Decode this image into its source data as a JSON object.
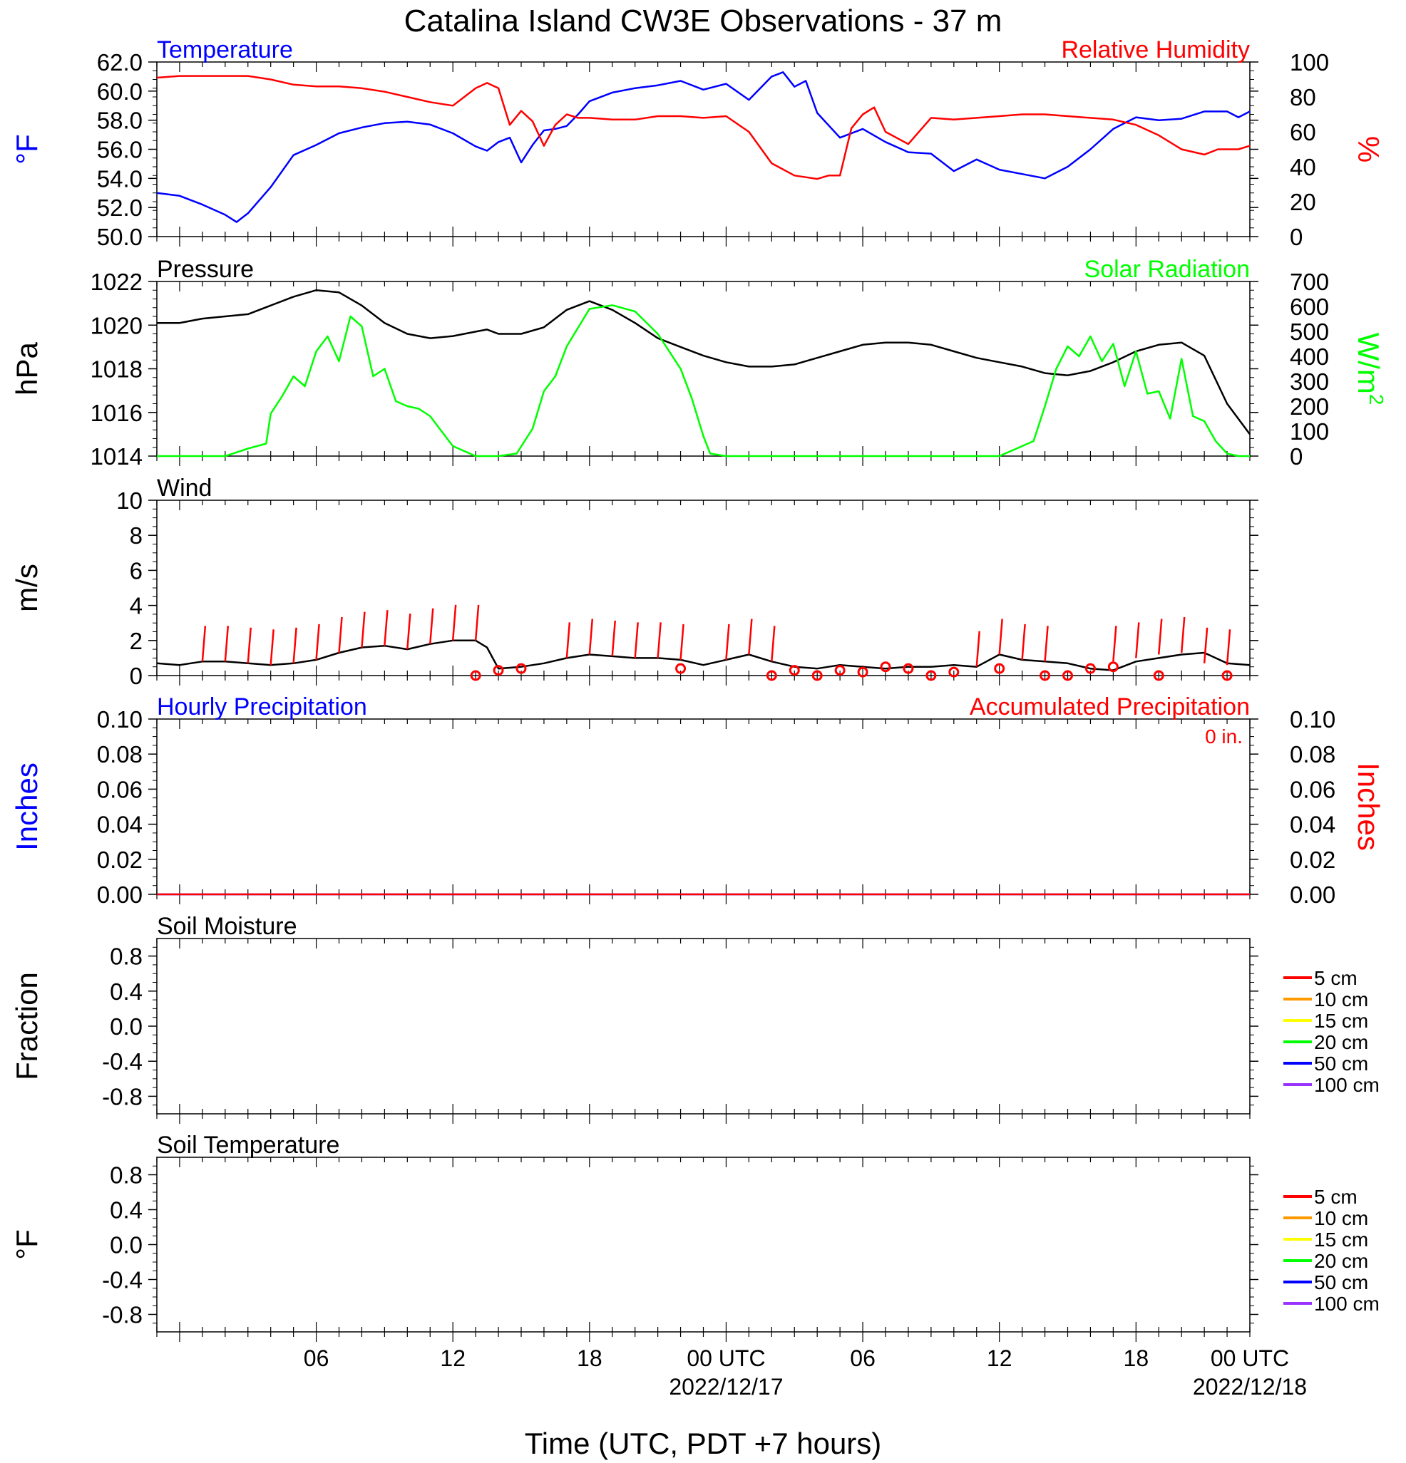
{
  "title": "Catalina Island CW3E Observations - 37 m",
  "xlabel": "Time (UTC, PDT +7 hours)",
  "x_ticks": [
    {
      "label": "06",
      "sub": ""
    },
    {
      "label": "12",
      "sub": ""
    },
    {
      "label": "18",
      "sub": ""
    },
    {
      "label": "00 UTC",
      "sub": "2022/12/17"
    },
    {
      "label": "06",
      "sub": ""
    },
    {
      "label": "12",
      "sub": ""
    },
    {
      "label": "18",
      "sub": ""
    },
    {
      "label": "00 UTC",
      "sub": "2022/12/18"
    }
  ],
  "colors": {
    "temperature": "#0000ff",
    "humidity": "#ff0000",
    "pressure": "#000000",
    "solar": "#00ff00",
    "wind": "#000000",
    "wind_barb": "#ff0000",
    "hourly_precip": "#0000ff",
    "accum_precip": "#ff0000"
  },
  "chart_data": [
    {
      "type": "line",
      "title_left": "Temperature",
      "title_right": "Relative Humidity",
      "ylabel_left": "°F",
      "ylabel_right": "%",
      "ylim_left": [
        50,
        62
      ],
      "ylim_right": [
        0,
        100
      ],
      "yticks_left": [
        "62.0",
        "60.0",
        "58.0",
        "56.0",
        "54.0",
        "52.0",
        "50.0"
      ],
      "yticks_right": [
        "100",
        "80",
        "60",
        "40",
        "20",
        "0"
      ],
      "xlim_hours": [
        -1,
        47
      ],
      "series": [
        {
          "name": "Temperature",
          "axis": "left",
          "x": [
            -1,
            0,
            1,
            2,
            2.5,
            3,
            4,
            5,
            6,
            7,
            8,
            9,
            10,
            11,
            12,
            13,
            13.5,
            14,
            14.5,
            15,
            15.5,
            16,
            16.5,
            17,
            17.5,
            18,
            19,
            20,
            21,
            22,
            23,
            24,
            25,
            26,
            26.5,
            27,
            27.5,
            28,
            29,
            30,
            31,
            32,
            33,
            34,
            35,
            36,
            37,
            38,
            39,
            40,
            41,
            42,
            43,
            44,
            45,
            45.6,
            46,
            46.5,
            47
          ],
          "y": [
            53,
            52.8,
            52.2,
            51.5,
            51.0,
            51.6,
            53.4,
            55.6,
            56.3,
            57.1,
            57.5,
            57.8,
            57.9,
            57.7,
            57.1,
            56.2,
            55.9,
            56.5,
            56.8,
            55.1,
            56.3,
            57.3,
            57.4,
            57.6,
            58.4,
            59.3,
            59.9,
            60.2,
            60.4,
            60.7,
            60.1,
            60.5,
            59.4,
            61.0,
            61.3,
            60.3,
            60.7,
            58.5,
            56.8,
            57.4,
            56.5,
            55.8,
            55.7,
            54.5,
            55.3,
            54.6,
            54.3,
            54.0,
            54.8,
            56.0,
            57.4,
            58.2,
            58.0,
            58.1,
            58.6,
            58.6,
            58.6,
            58.2,
            58.6
          ]
        },
        {
          "name": "Relative Humidity",
          "axis": "right",
          "x": [
            -1,
            0,
            1,
            2,
            3,
            4,
            5,
            6,
            7,
            8,
            9,
            10,
            11,
            12,
            13,
            13.5,
            14,
            14.5,
            15,
            15.5,
            16,
            16.5,
            17,
            17.5,
            18,
            19,
            20,
            21,
            22,
            23,
            24,
            25,
            26,
            27,
            28,
            28.5,
            29,
            29.5,
            30,
            30.5,
            31,
            32,
            33,
            34,
            35,
            36,
            37,
            38,
            39,
            40,
            41,
            42,
            43,
            44,
            45,
            45.6,
            46,
            46.5,
            47
          ],
          "y": [
            91,
            92,
            92,
            92,
            92,
            90,
            87,
            86,
            86,
            85,
            83,
            80,
            77,
            75,
            85,
            88,
            85,
            64,
            72,
            66,
            52,
            64,
            70,
            68,
            68,
            67,
            67,
            69,
            69,
            68,
            69,
            60,
            42,
            35,
            33,
            35,
            35,
            62,
            70,
            74,
            60,
            53,
            68,
            67,
            68,
            69,
            70,
            70,
            69,
            68,
            67,
            64,
            58,
            50,
            47,
            50,
            50,
            50,
            52
          ]
        }
      ]
    },
    {
      "type": "line",
      "title_left": "Pressure",
      "title_right": "Solar Radiation",
      "ylabel_left": "hPa",
      "ylabel_right": "W/m",
      "ylabel_right_sup": "2",
      "ylim_left": [
        1014,
        1022
      ],
      "ylim_right": [
        0,
        700
      ],
      "yticks_left": [
        "1022",
        "1020",
        "1018",
        "1016",
        "1014"
      ],
      "yticks_right": [
        "700",
        "600",
        "500",
        "400",
        "300",
        "200",
        "100",
        "0"
      ],
      "xlim_hours": [
        -1,
        47
      ],
      "series": [
        {
          "name": "Pressure",
          "axis": "left",
          "x": [
            -1,
            0,
            1,
            2,
            3,
            4,
            5,
            6,
            7,
            8,
            9,
            10,
            11,
            12,
            13,
            13.5,
            14,
            15,
            16,
            17,
            18,
            19,
            20,
            21,
            22,
            23,
            24,
            25,
            26,
            27,
            28,
            29,
            30,
            31,
            32,
            33,
            34,
            35,
            36,
            37,
            38,
            39,
            40,
            41,
            42,
            43,
            44,
            45,
            46,
            47
          ],
          "y": [
            1020.1,
            1020.1,
            1020.3,
            1020.4,
            1020.5,
            1020.9,
            1021.3,
            1021.6,
            1021.5,
            1020.9,
            1020.1,
            1019.6,
            1019.4,
            1019.5,
            1019.7,
            1019.8,
            1019.6,
            1019.6,
            1019.9,
            1020.7,
            1021.1,
            1020.7,
            1020.1,
            1019.4,
            1019.0,
            1018.6,
            1018.3,
            1018.1,
            1018.1,
            1018.2,
            1018.5,
            1018.8,
            1019.1,
            1019.2,
            1019.2,
            1019.1,
            1018.8,
            1018.5,
            1018.3,
            1018.1,
            1017.8,
            1017.7,
            1017.9,
            1018.3,
            1018.8,
            1019.1,
            1019.2,
            1018.6,
            1016.4,
            1015.0
          ]
        },
        {
          "name": "Solar Radiation",
          "axis": "right",
          "x": [
            -1,
            0,
            1,
            2,
            3,
            3.8,
            4,
            4.5,
            5,
            5.5,
            6,
            6.5,
            7,
            7.5,
            8,
            8.5,
            9,
            9.5,
            10,
            10.5,
            11,
            11.5,
            12,
            13,
            13.5,
            14,
            14.8,
            15.5,
            16,
            16.5,
            17,
            18,
            19,
            20,
            21,
            22,
            22.5,
            23,
            23.3,
            24,
            30,
            36,
            37.5,
            38,
            38.5,
            39,
            39.5,
            40,
            40.5,
            41,
            41.5,
            42,
            42.5,
            43,
            43.5,
            44,
            44.5,
            45,
            45.5,
            46,
            46.5,
            47
          ],
          "y": [
            0,
            0,
            0,
            0,
            30,
            50,
            170,
            240,
            320,
            280,
            420,
            480,
            380,
            560,
            520,
            320,
            350,
            220,
            200,
            190,
            160,
            100,
            40,
            0,
            0,
            0,
            10,
            110,
            260,
            320,
            440,
            590,
            605,
            580,
            490,
            350,
            230,
            80,
            10,
            0,
            0,
            0,
            60,
            200,
            350,
            440,
            400,
            480,
            380,
            450,
            280,
            420,
            250,
            260,
            150,
            390,
            160,
            140,
            60,
            10,
            0,
            0
          ]
        }
      ]
    },
    {
      "type": "line",
      "title_left": "Wind",
      "ylabel_left": "m/s",
      "ylim_left": [
        0,
        10
      ],
      "yticks_left": [
        "10",
        "8",
        "6",
        "4",
        "2",
        "0"
      ],
      "xlim_hours": [
        -1,
        47
      ],
      "series": [
        {
          "name": "Wind",
          "axis": "left",
          "x": [
            -1,
            0,
            1,
            2,
            3,
            4,
            5,
            6,
            7,
            8,
            9,
            10,
            11,
            12,
            13,
            13.5,
            14,
            15,
            16,
            17,
            18,
            19,
            20,
            21,
            22,
            23,
            24,
            25,
            26,
            27,
            28,
            29,
            30,
            31,
            32,
            33,
            34,
            35,
            36,
            37,
            38,
            39,
            40,
            41,
            42,
            43,
            44,
            45,
            46,
            47
          ],
          "y": [
            0.7,
            0.6,
            0.8,
            0.8,
            0.7,
            0.6,
            0.7,
            0.9,
            1.3,
            1.6,
            1.7,
            1.5,
            1.8,
            2.0,
            2.0,
            1.6,
            0.4,
            0.5,
            0.7,
            1.0,
            1.2,
            1.1,
            1.0,
            1.0,
            0.9,
            0.6,
            0.9,
            1.2,
            0.8,
            0.5,
            0.4,
            0.6,
            0.5,
            0.4,
            0.5,
            0.5,
            0.6,
            0.5,
            1.2,
            0.9,
            0.8,
            0.7,
            0.4,
            0.3,
            0.8,
            1.0,
            1.2,
            1.3,
            0.7,
            0.6
          ]
        }
      ],
      "barbs": {
        "hours": [
          1,
          2,
          3,
          4,
          5,
          6,
          7,
          8,
          9,
          10,
          11,
          12,
          13,
          17,
          18,
          19,
          20,
          21,
          22,
          24,
          25,
          26,
          35,
          36,
          37,
          38,
          41,
          42,
          43,
          44,
          45,
          46
        ],
        "speeds": [
          0.8,
          0.8,
          0.7,
          0.6,
          0.7,
          0.9,
          1.3,
          1.6,
          1.7,
          1.5,
          1.8,
          2.0,
          2.0,
          1.0,
          1.2,
          1.1,
          1.0,
          1.0,
          0.9,
          0.9,
          1.2,
          0.8,
          0.5,
          1.2,
          0.9,
          0.8,
          0.8,
          1.0,
          1.2,
          1.3,
          0.7,
          0.6
        ]
      },
      "calm": {
        "hours": [
          13,
          14,
          15,
          22,
          26,
          27,
          28,
          29,
          30,
          31,
          32,
          33,
          34,
          36,
          38,
          39,
          40,
          41,
          43,
          46
        ],
        "speeds": [
          0,
          0.3,
          0.4,
          0.4,
          0,
          0.3,
          0,
          0.3,
          0.2,
          0.5,
          0.4,
          0,
          0.2,
          0.4,
          0,
          0,
          0.4,
          0.5,
          0,
          0
        ]
      }
    },
    {
      "type": "line",
      "title_left": "Hourly Precipitation",
      "title_right": "Accumulated Precipitation",
      "annotation": "0 in.",
      "ylabel_left": "Inches",
      "ylabel_right": "Inches",
      "ylim_left": [
        0,
        0.1
      ],
      "ylim_right": [
        0,
        0.1
      ],
      "yticks_left": [
        "0.10",
        "0.08",
        "0.06",
        "0.04",
        "0.02",
        "0.00"
      ],
      "yticks_right": [
        "0.10",
        "0.08",
        "0.06",
        "0.04",
        "0.02",
        "0.00"
      ],
      "xlim_hours": [
        -1,
        47
      ],
      "series": [
        {
          "name": "Hourly Precipitation",
          "axis": "left",
          "x": [
            -1,
            47
          ],
          "y": [
            0,
            0
          ]
        },
        {
          "name": "Accumulated Precipitation",
          "axis": "right",
          "x": [
            -1,
            47
          ],
          "y": [
            0,
            0
          ]
        }
      ]
    },
    {
      "type": "line",
      "title_left": "Soil Moisture",
      "ylabel_left": "Fraction",
      "ylim_left": [
        -1,
        1
      ],
      "yticks_left": [
        "0.8",
        "0.4",
        "0.0",
        "-0.4",
        "-0.8"
      ],
      "xlim_hours": [
        -1,
        47
      ],
      "legend": [
        {
          "label": "5 cm",
          "color": "#ff0000"
        },
        {
          "label": "10 cm",
          "color": "#ff9900"
        },
        {
          "label": "15 cm",
          "color": "#ffff00"
        },
        {
          "label": "20 cm",
          "color": "#00ff00"
        },
        {
          "label": "50 cm",
          "color": "#0000ff"
        },
        {
          "label": "100 cm",
          "color": "#9933ff"
        }
      ],
      "series": []
    },
    {
      "type": "line",
      "title_left": "Soil Temperature",
      "ylabel_left": "°F",
      "ylim_left": [
        -1,
        1
      ],
      "yticks_left": [
        "0.8",
        "0.4",
        "0.0",
        "-0.4",
        "-0.8"
      ],
      "xlim_hours": [
        -1,
        47
      ],
      "legend": [
        {
          "label": "5 cm",
          "color": "#ff0000"
        },
        {
          "label": "10 cm",
          "color": "#ff9900"
        },
        {
          "label": "15 cm",
          "color": "#ffff00"
        },
        {
          "label": "20 cm",
          "color": "#00ff00"
        },
        {
          "label": "50 cm",
          "color": "#0000ff"
        },
        {
          "label": "100 cm",
          "color": "#9933ff"
        }
      ],
      "series": []
    }
  ]
}
